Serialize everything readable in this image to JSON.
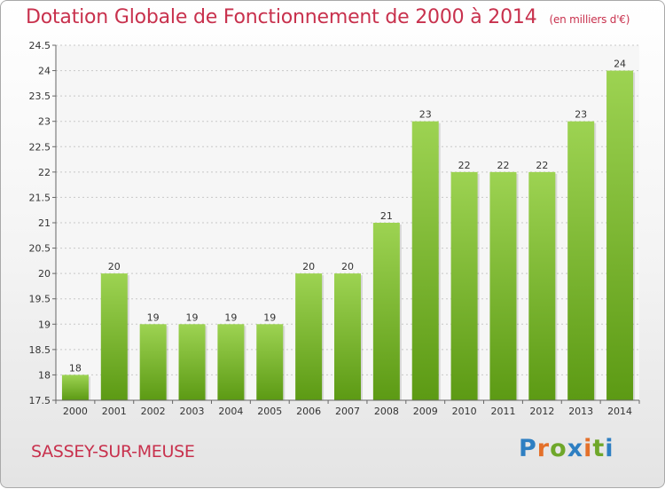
{
  "title": "Dotation Globale de Fonctionnement de 2000 à 2014",
  "units": "(en milliers d'€)",
  "commune": "SASSEY-SUR-MEUSE",
  "logo": {
    "text": "Proxiti",
    "letters": [
      "P",
      "r",
      "o",
      "x",
      "i",
      "t",
      "i"
    ],
    "colors": [
      "#2e7fc2",
      "#e4702a",
      "#6fa72a",
      "#2e7fc2",
      "#e4702a",
      "#6fa72a",
      "#2e7fc2"
    ]
  },
  "colors": {
    "bar_top": "#9dd352",
    "bar_bottom": "#5c9a14",
    "title": "#c8314d"
  },
  "chart_data": {
    "type": "bar",
    "categories": [
      "2000",
      "2001",
      "2002",
      "2003",
      "2004",
      "2005",
      "2006",
      "2007",
      "2008",
      "2009",
      "2010",
      "2011",
      "2012",
      "2013",
      "2014"
    ],
    "values": [
      18,
      20,
      19,
      19,
      19,
      19,
      20,
      20,
      21,
      23,
      22,
      22,
      22,
      23,
      24
    ],
    "data_labels": [
      "18",
      "20",
      "19",
      "19",
      "19",
      "19",
      "20",
      "20",
      "21",
      "23",
      "22",
      "22",
      "22",
      "23",
      "24"
    ],
    "ylim": [
      17.5,
      24.5
    ],
    "yticks": [
      17.5,
      18,
      18.5,
      19,
      19.5,
      20,
      20.5,
      21,
      21.5,
      22,
      22.5,
      23,
      23.5,
      24,
      24.5
    ],
    "ytick_labels": [
      "17.5",
      "18",
      "18.5",
      "19",
      "19.5",
      "20",
      "20.5",
      "21",
      "21.5",
      "22",
      "22.5",
      "23",
      "23.5",
      "24",
      "24.5"
    ],
    "grid": true,
    "xlabel": "",
    "ylabel": ""
  }
}
